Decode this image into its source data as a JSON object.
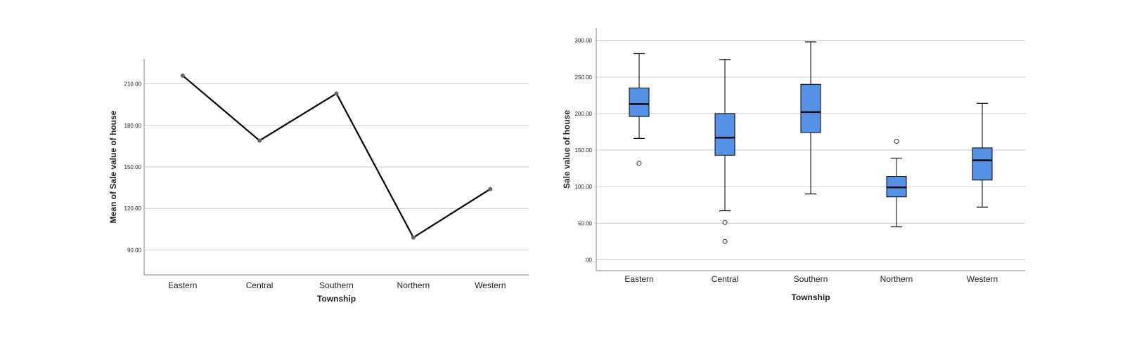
{
  "chart_data": [
    {
      "type": "line",
      "xlabel": "Township",
      "ylabel": "Mean of Sale value of house",
      "categories": [
        "Eastern",
        "Central",
        "Southern",
        "Northern",
        "Western"
      ],
      "values": [
        216,
        169,
        203,
        99,
        134
      ],
      "yticks": [
        "90.00",
        "120.00",
        "150.00",
        "180.00",
        "210.00"
      ],
      "ylim": [
        72,
        228
      ],
      "grid": true,
      "line_color": "#000000",
      "marker_color": "#666666"
    },
    {
      "type": "boxplot",
      "xlabel": "Township",
      "ylabel": "Sale value of house",
      "categories": [
        "Eastern",
        "Central",
        "Southern",
        "Northern",
        "Western"
      ],
      "boxes": [
        {
          "whisker_low": 166,
          "q1": 196,
          "median": 213,
          "q3": 235,
          "whisker_high": 282,
          "outliers": [
            132
          ]
        },
        {
          "whisker_low": 67,
          "q1": 143,
          "median": 167,
          "q3": 200,
          "whisker_high": 274,
          "outliers": [
            51,
            25
          ]
        },
        {
          "whisker_low": 90,
          "q1": 174,
          "median": 202,
          "q3": 240,
          "whisker_high": 298,
          "outliers": []
        },
        {
          "whisker_low": 45,
          "q1": 86,
          "median": 99,
          "q3": 114,
          "whisker_high": 139,
          "outliers": [
            162
          ]
        },
        {
          "whisker_low": 72,
          "q1": 109,
          "median": 136,
          "q3": 153,
          "whisker_high": 214,
          "outliers": []
        }
      ],
      "yticks": [
        ".00",
        "50.00",
        "100.00",
        "150.00",
        "200.00",
        "250.00",
        "300.00"
      ],
      "ylim": [
        -15,
        317
      ],
      "grid": true,
      "box_color": "#5592E6"
    }
  ]
}
